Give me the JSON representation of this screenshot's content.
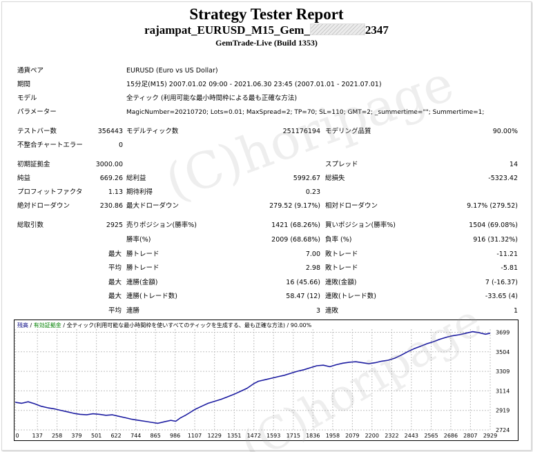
{
  "header": {
    "title": "Strategy Tester Report",
    "report_name_prefix": "rajampat_EURUSD_M15_Gem_",
    "report_name_suffix": "2347",
    "build": "GemTrade-Live (Build 1353)"
  },
  "settings": [
    {
      "label": "通貨ペア",
      "value": "EURUSD (Euro vs US Dollar)"
    },
    {
      "label": "期間",
      "value": "15分足(M15) 2007.01.02 09:00 - 2021.06.30 23:45 (2007.01.01 - 2021.07.01)"
    },
    {
      "label": "モデル",
      "value": "全ティック (利用可能な最小時間枠による最も正確な方法)"
    },
    {
      "label": "パラメーター",
      "value": "MagicNumber=20210720; Lots=0.01; MaxSpread=2; TP=70; SL=110; GMT=2; _summertime=\"\"; Summertime=1;"
    }
  ],
  "stats": {
    "bars_label": "テストバー数",
    "bars_value": "356443",
    "ticks_label": "モデルティック数",
    "ticks_value": "251176194",
    "quality_label": "モデリング品質",
    "quality_value": "90.00%",
    "mismatch_label": "不整合チャートエラー",
    "mismatch_value": "0",
    "deposit_label": "初期証拠金",
    "deposit_value": "3000.00",
    "spread_label": "スプレッド",
    "spread_value": "14",
    "netprofit_label": "純益",
    "netprofit_value": "669.26",
    "grossprofit_label": "総利益",
    "grossprofit_value": "5992.67",
    "grossloss_label": "総損失",
    "grossloss_value": "-5323.42",
    "pf_label": "プロフィットファクタ",
    "pf_value": "1.13",
    "expected_label": "期待利得",
    "expected_value": "0.23",
    "absdd_label": "絶対ドローダウン",
    "absdd_value": "230.86",
    "maxdd_label": "最大ドローダウン",
    "maxdd_value": "279.52 (9.17%)",
    "reldd_label": "相対ドローダウン",
    "reldd_value": "9.17% (279.52)",
    "trades_label": "総取引数",
    "trades_value": "2925",
    "short_label": "売りポジション(勝率%)",
    "short_value": "1421 (68.26%)",
    "long_label": "買いポジション(勝率%)",
    "long_value": "1504 (69.08%)",
    "winrate_label": "勝率(%)",
    "winrate_value": "2009 (68.68%)",
    "lossrate_label": "負率 (%)",
    "lossrate_value": "916 (31.32%)",
    "largest_qual": "最大",
    "largest_win_label": "勝トレード",
    "largest_win_value": "7.00",
    "largest_loss_label": "敗トレード",
    "largest_loss_value": "-11.21",
    "avg_qual": "平均",
    "avg_win_label": "勝トレード",
    "avg_win_value": "2.98",
    "avg_loss_label": "敗トレード",
    "avg_loss_value": "-5.81",
    "maxc_qual": "最大",
    "maxc_win_label": "連勝(金額)",
    "maxc_win_value": "16 (45.66)",
    "maxc_loss_label": "連敗(金額)",
    "maxc_loss_value": "7 (-16.37)",
    "maxcp_qual": "最大",
    "maxcp_win_label": "連勝(トレード数)",
    "maxcp_win_value": "58.47 (12)",
    "maxcp_loss_label": "連敗(トレード数)",
    "maxcp_loss_value": "-33.65 (4)",
    "avgc_qual": "平均",
    "avgc_win_label": "連勝",
    "avgc_win_value": "3",
    "avgc_loss_label": "連敗",
    "avgc_loss_value": "1"
  },
  "watermark": {
    "text": "(C)horipage"
  },
  "colors": {
    "line": "#1a1aa0",
    "grid": "#c0c0c0",
    "legend_balance": "#000080",
    "legend_equity": "#008000"
  },
  "chart_legend": {
    "balance": "残高",
    "sep1": " / ",
    "equity": "有効証拠金",
    "rest": " / 全ティック(利用可能な最小時間枠を使いすべてのティックを生成する、最も正確な方法) / 90.00%"
  },
  "chart_data": {
    "type": "line",
    "title": "",
    "xlabel": "",
    "ylabel": "",
    "x_ticks": [
      0,
      137,
      258,
      379,
      501,
      622,
      744,
      865,
      986,
      1107,
      1229,
      1351,
      1472,
      1593,
      1715,
      1836,
      1958,
      2079,
      2200,
      2322,
      2443,
      2565,
      2686,
      2807,
      2929
    ],
    "y_ticks": [
      2724,
      2919,
      3114,
      3309,
      3504,
      3699
    ],
    "xlim": [
      0,
      2929
    ],
    "ylim": [
      2724,
      3730
    ],
    "grid": true,
    "series": [
      {
        "values": [
          [
            0,
            3000
          ],
          [
            40,
            2990
          ],
          [
            80,
            3005
          ],
          [
            120,
            2985
          ],
          [
            160,
            2960
          ],
          [
            200,
            2945
          ],
          [
            240,
            2935
          ],
          [
            280,
            2920
          ],
          [
            320,
            2905
          ],
          [
            360,
            2890
          ],
          [
            400,
            2880
          ],
          [
            440,
            2875
          ],
          [
            480,
            2885
          ],
          [
            520,
            2880
          ],
          [
            560,
            2870
          ],
          [
            600,
            2875
          ],
          [
            640,
            2860
          ],
          [
            680,
            2845
          ],
          [
            720,
            2830
          ],
          [
            760,
            2820
          ],
          [
            800,
            2810
          ],
          [
            840,
            2800
          ],
          [
            880,
            2790
          ],
          [
            920,
            2805
          ],
          [
            960,
            2820
          ],
          [
            990,
            2810
          ],
          [
            1020,
            2845
          ],
          [
            1050,
            2870
          ],
          [
            1080,
            2900
          ],
          [
            1110,
            2930
          ],
          [
            1150,
            2960
          ],
          [
            1190,
            2990
          ],
          [
            1230,
            3010
          ],
          [
            1270,
            3030
          ],
          [
            1310,
            3055
          ],
          [
            1350,
            3080
          ],
          [
            1390,
            3110
          ],
          [
            1430,
            3140
          ],
          [
            1470,
            3185
          ],
          [
            1500,
            3210
          ],
          [
            1540,
            3225
          ],
          [
            1580,
            3240
          ],
          [
            1620,
            3255
          ],
          [
            1660,
            3270
          ],
          [
            1700,
            3290
          ],
          [
            1740,
            3310
          ],
          [
            1780,
            3325
          ],
          [
            1820,
            3345
          ],
          [
            1860,
            3365
          ],
          [
            1900,
            3370
          ],
          [
            1940,
            3355
          ],
          [
            1980,
            3375
          ],
          [
            2020,
            3390
          ],
          [
            2060,
            3400
          ],
          [
            2100,
            3405
          ],
          [
            2140,
            3395
          ],
          [
            2180,
            3385
          ],
          [
            2220,
            3395
          ],
          [
            2260,
            3410
          ],
          [
            2300,
            3420
          ],
          [
            2340,
            3440
          ],
          [
            2380,
            3470
          ],
          [
            2420,
            3505
          ],
          [
            2460,
            3535
          ],
          [
            2500,
            3560
          ],
          [
            2540,
            3585
          ],
          [
            2580,
            3605
          ],
          [
            2620,
            3630
          ],
          [
            2660,
            3650
          ],
          [
            2700,
            3665
          ],
          [
            2740,
            3675
          ],
          [
            2780,
            3690
          ],
          [
            2820,
            3705
          ],
          [
            2860,
            3695
          ],
          [
            2900,
            3680
          ],
          [
            2929,
            3690
          ]
        ]
      }
    ]
  }
}
